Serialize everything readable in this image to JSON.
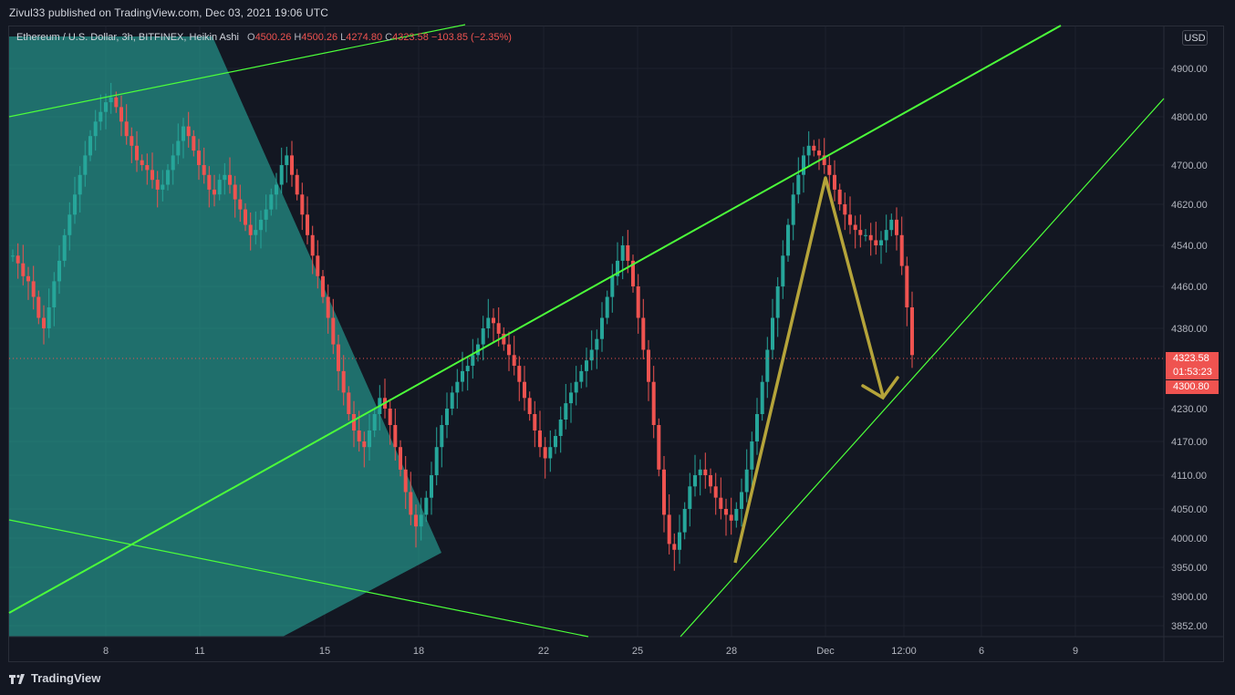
{
  "publisher_line": "Zivul33 published on TradingView.com, Dec 03, 2021 19:06 UTC",
  "legend": {
    "symbol": "Ethereum / U.S. Dollar, 3h, BITFINEX, Heikin Ashi",
    "o_label": "O",
    "o_value": "4500.26",
    "h_label": "H",
    "h_value": "4500.26",
    "l_label": "L",
    "l_value": "4274.80",
    "c_label": "C",
    "c_value": "4323.58",
    "change": "−103.85 (−2.35%)"
  },
  "currency_badge": "USD",
  "price_tags": {
    "last": "4323.58",
    "timer": "01:53:23",
    "low": "4300.80"
  },
  "brand": "TradingView",
  "colors": {
    "up": "#26a69a",
    "down": "#ef5350",
    "trendline": "#4cff3a",
    "shade": "#26a69a",
    "arrow": "#b5a43a",
    "background": "#131722"
  },
  "icons": {
    "logo": "tradingview-logo-icon"
  },
  "chart_data": {
    "type": "candlestick",
    "title": "Ethereum / U.S. Dollar, 3h, BITFINEX, Heikin Ashi",
    "y_ticks": [
      "4900.00",
      "4800.00",
      "4700.00",
      "4620.00",
      "4540.00",
      "4460.00",
      "4380.00",
      "4230.00",
      "4170.00",
      "4110.00",
      "4050.00",
      "4000.00",
      "3950.00",
      "3900.00",
      "3852.00"
    ],
    "x_ticks": [
      "8",
      "11",
      "15",
      "18",
      "22",
      "25",
      "28",
      "Dec",
      "12:00",
      "6",
      "9"
    ],
    "ylim": [
      3852,
      4900
    ],
    "last_price": 4323.58,
    "grid": true,
    "series": [
      {
        "name": "segment-1",
        "start": 4520,
        "points": [
          4520,
          4505,
          4480,
          4470,
          4440,
          4400,
          4380,
          4420,
          4470,
          4510,
          4560,
          4600,
          4640,
          4680,
          4720,
          4760,
          4790,
          4810,
          4830,
          4840,
          4820,
          4790,
          4760,
          4740,
          4710,
          4700,
          4690,
          4670,
          4650,
          4660,
          4690,
          4720,
          4750,
          4780,
          4760,
          4730,
          4700,
          4680,
          4650,
          4640,
          4670,
          4680,
          4660,
          4630,
          4610,
          4580,
          4560,
          4570,
          4590,
          4610,
          4640,
          4660,
          4700,
          4720,
          4680,
          4640,
          4600,
          4560,
          4520,
          4480,
          4440,
          4400,
          4350,
          4300,
          4260,
          4220,
          4190,
          4170,
          4160,
          4190,
          4220,
          4250,
          4230,
          4200,
          4160,
          4120,
          4080,
          4040,
          4020,
          4040,
          4070,
          4110,
          4160,
          4200,
          4230,
          4260,
          4280,
          4300,
          4310,
          4330,
          4350,
          4380,
          4400,
          4390,
          4370,
          4350,
          4330,
          4310,
          4280,
          4250,
          4220,
          4190,
          4160,
          4140,
          4160,
          4180,
          4210,
          4240,
          4260,
          4280,
          4300,
          4320,
          4340,
          4360,
          4400,
          4440,
          4480,
          4510,
          4540,
          4510,
          4460,
          4400,
          4340,
          4280,
          4200,
          4120,
          4040,
          3990,
          3980,
          4010,
          4050,
          4090,
          4110,
          4120,
          4110,
          4090,
          4070,
          4050,
          4040,
          4030,
          4050,
          4080,
          4120,
          4170,
          4220,
          4280,
          4340,
          4400,
          4460,
          4520,
          4580,
          4640,
          4680,
          4720,
          4740,
          4730,
          4720,
          4700,
          4680,
          4650,
          4620,
          4600,
          4580,
          4570,
          4560,
          4560,
          4550,
          4540,
          4550,
          4570,
          4590,
          4560,
          4500,
          4420,
          4330
        ]
      }
    ],
    "annotations": {
      "trendlines": 4,
      "arrow_up": "zigzag up",
      "arrow_down": "zigzag down"
    }
  }
}
